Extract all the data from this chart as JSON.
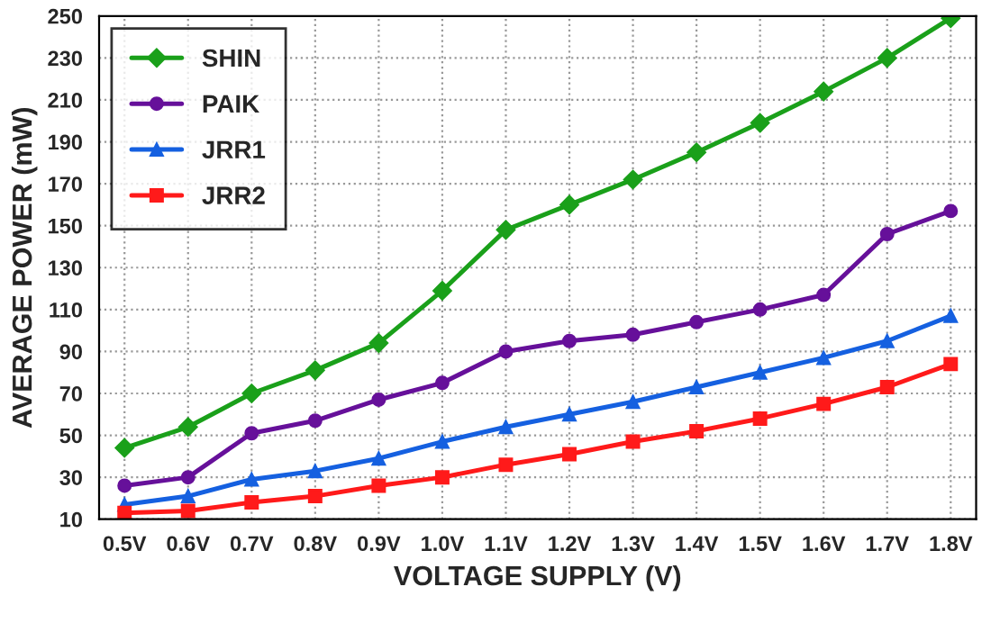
{
  "chart_data": {
    "type": "line",
    "xlabel": "VOLTAGE SUPPLY (V)",
    "ylabel": "AVERAGE POWER (mW)",
    "categories": [
      "0.5V",
      "0.6V",
      "0.7V",
      "0.8V",
      "0.9V",
      "1.0V",
      "1.1V",
      "1.2V",
      "1.3V",
      "1.4V",
      "1.5V",
      "1.6V",
      "1.7V",
      "1.8V"
    ],
    "series": [
      {
        "name": "SHIN",
        "color": "#1aa01a",
        "marker": "diamond",
        "values": [
          44,
          54,
          70,
          81,
          94,
          119,
          148,
          160,
          172,
          185,
          199,
          214,
          230,
          249
        ]
      },
      {
        "name": "PAIK",
        "color": "#66109a",
        "marker": "circle",
        "values": [
          26,
          30,
          51,
          57,
          67,
          75,
          90,
          95,
          98,
          104,
          110,
          117,
          146,
          157
        ]
      },
      {
        "name": "JRR1",
        "color": "#1560e0",
        "marker": "triangle",
        "values": [
          17,
          21,
          29,
          33,
          39,
          47,
          54,
          60,
          66,
          73,
          80,
          87,
          95,
          107
        ]
      },
      {
        "name": "JRR2",
        "color": "#ff1a1a",
        "marker": "square",
        "values": [
          13,
          14,
          18,
          21,
          26,
          30,
          36,
          41,
          47,
          52,
          58,
          65,
          73,
          84
        ]
      }
    ],
    "ylim": [
      10,
      250
    ],
    "yticks": [
      10,
      30,
      50,
      70,
      90,
      110,
      130,
      150,
      170,
      190,
      210,
      230,
      250
    ],
    "grid": true,
    "legend": "top left",
    "line_style": "solid"
  }
}
